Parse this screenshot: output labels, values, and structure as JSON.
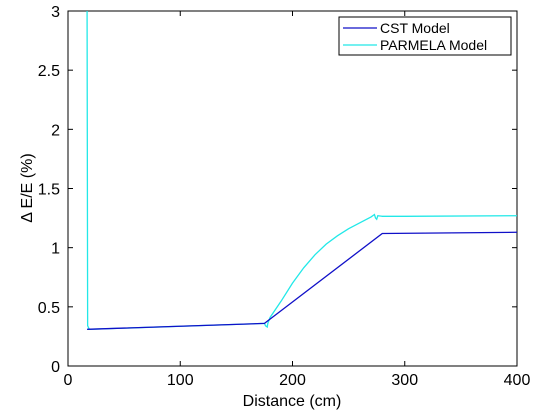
{
  "chart_data": {
    "type": "line",
    "title": "",
    "xlabel": "Distance (cm)",
    "ylabel": "Δ E/E (%)",
    "xlim": [
      0,
      400
    ],
    "ylim": [
      0,
      3
    ],
    "grid": false,
    "legend_position": "top-right",
    "x_ticks": [
      "0",
      "100",
      "200",
      "300",
      "400"
    ],
    "y_ticks": [
      "0",
      "0.5",
      "1",
      "1.5",
      "2",
      "2.5",
      "3"
    ],
    "series": [
      {
        "name": "CST Model",
        "color": "#1010c8",
        "x": [
          17,
          175,
          280,
          400
        ],
        "y": [
          0.31,
          0.36,
          1.12,
          1.13
        ]
      },
      {
        "name": "PARMELA Model",
        "color": "#22e8e8",
        "x": [
          17,
          17.5,
          19,
          175,
          176,
          177.5,
          178,
          180,
          190,
          200,
          210,
          220,
          230,
          240,
          250,
          260,
          270,
          273,
          274,
          275,
          276,
          280,
          300,
          400
        ],
        "y": [
          3.0,
          0.34,
          0.31,
          0.36,
          0.34,
          0.33,
          0.36,
          0.41,
          0.55,
          0.7,
          0.83,
          0.94,
          1.03,
          1.1,
          1.16,
          1.21,
          1.26,
          1.28,
          1.25,
          1.24,
          1.27,
          1.265,
          1.265,
          1.27
        ]
      }
    ]
  }
}
